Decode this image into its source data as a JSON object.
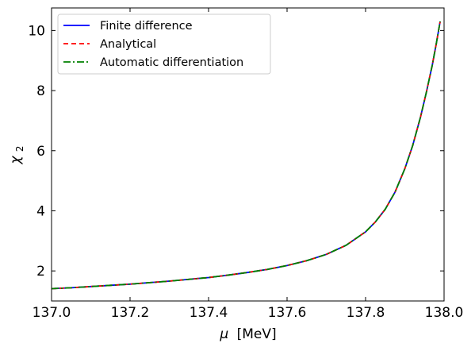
{
  "chart_data": {
    "type": "line",
    "title": "",
    "xlabel_symbol": "μ",
    "xlabel_unit": "[MeV]",
    "ylabel_symbol": "χ",
    "ylabel_sub": "2",
    "xlim": [
      137.0,
      138.0
    ],
    "ylim": [
      1.0,
      10.75
    ],
    "xticks": [
      137.0,
      137.2,
      137.4,
      137.6,
      137.8,
      138.0
    ],
    "xtick_labels": [
      "137.0",
      "137.2",
      "137.4",
      "137.6",
      "137.8",
      "138.0"
    ],
    "yticks": [
      2,
      4,
      6,
      8,
      10
    ],
    "ytick_labels": [
      "2",
      "4",
      "6",
      "8",
      "10"
    ],
    "grid": false,
    "legend_position": "top-left",
    "x": [
      137.0,
      137.05,
      137.1,
      137.15,
      137.2,
      137.25,
      137.3,
      137.35,
      137.4,
      137.45,
      137.5,
      137.55,
      137.6,
      137.65,
      137.7,
      137.75,
      137.8,
      137.825,
      137.85,
      137.875,
      137.9,
      137.92,
      137.94,
      137.955,
      137.97,
      137.98,
      137.99
    ],
    "series": [
      {
        "name": "Finite difference",
        "color": "#0000ff",
        "dash": "solid",
        "y": [
          1.41,
          1.44,
          1.48,
          1.52,
          1.56,
          1.61,
          1.66,
          1.72,
          1.78,
          1.86,
          1.95,
          2.05,
          2.18,
          2.34,
          2.55,
          2.85,
          3.3,
          3.63,
          4.05,
          4.62,
          5.4,
          6.17,
          7.12,
          7.95,
          8.85,
          9.55,
          10.3
        ]
      },
      {
        "name": "Analytical",
        "color": "#ff0000",
        "dash": "dashed",
        "y": [
          1.41,
          1.44,
          1.48,
          1.52,
          1.56,
          1.61,
          1.66,
          1.72,
          1.78,
          1.86,
          1.95,
          2.05,
          2.18,
          2.34,
          2.55,
          2.85,
          3.3,
          3.63,
          4.05,
          4.62,
          5.4,
          6.17,
          7.12,
          7.95,
          8.85,
          9.55,
          10.3
        ]
      },
      {
        "name": "Automatic differentiation",
        "color": "#008000",
        "dash": "dashdot",
        "y": [
          1.41,
          1.44,
          1.48,
          1.52,
          1.56,
          1.61,
          1.66,
          1.72,
          1.78,
          1.86,
          1.95,
          2.05,
          2.18,
          2.34,
          2.55,
          2.85,
          3.3,
          3.63,
          4.05,
          4.62,
          5.4,
          6.17,
          7.12,
          7.95,
          8.85,
          9.55,
          10.3
        ]
      }
    ]
  }
}
